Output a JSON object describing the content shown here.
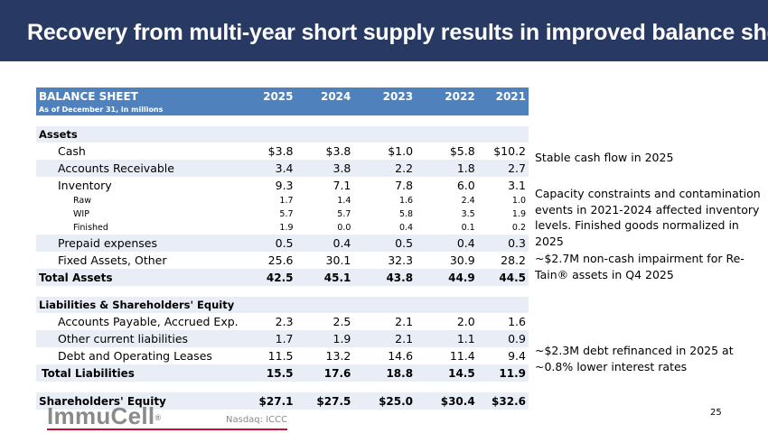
{
  "header": {
    "title": "Recovery from multi-year short supply results in improved balance sheet"
  },
  "table": {
    "title": "BALANCE SHEET",
    "subtitle": "As of December 31, in millions",
    "years": [
      "2025",
      "2024",
      "2023",
      "2022",
      "2021"
    ],
    "assets_heading": "Assets",
    "cash": {
      "label": "Cash",
      "values": [
        "$3.8",
        "$3.8",
        "$1.0",
        "$5.8",
        "$10.2"
      ]
    },
    "ar": {
      "label": "Accounts Receivable",
      "values": [
        "3.4",
        "3.8",
        "2.2",
        "1.8",
        "2.7"
      ]
    },
    "inventory": {
      "label": "Inventory",
      "values": [
        "9.3",
        "7.1",
        "7.8",
        "6.0",
        "3.1"
      ]
    },
    "raw": {
      "label": "Raw",
      "values": [
        "1.7",
        "1.4",
        "1.6",
        "2.4",
        "1.0"
      ]
    },
    "wip": {
      "label": "WIP",
      "values": [
        "5.7",
        "5.7",
        "5.8",
        "3.5",
        "1.9"
      ]
    },
    "finished": {
      "label": "Finished",
      "values": [
        "1.9",
        "0.0",
        "0.4",
        "0.1",
        "0.2"
      ]
    },
    "prepaid": {
      "label": "Prepaid expenses",
      "values": [
        "0.5",
        "0.4",
        "0.5",
        "0.4",
        "0.3"
      ]
    },
    "fixed": {
      "label": "Fixed Assets, Other",
      "values": [
        "25.6",
        "30.1",
        "32.3",
        "30.9",
        "28.2"
      ]
    },
    "total_assets": {
      "label": "Total Assets",
      "values": [
        "42.5",
        "45.1",
        "43.8",
        "44.9",
        "44.5"
      ]
    },
    "liab_heading": "Liabilities & Shareholders' Equity",
    "ap": {
      "label": "Accounts Payable, Accrued Exp.",
      "values": [
        "2.3",
        "2.5",
        "2.1",
        "2.0",
        "1.6"
      ]
    },
    "ocl": {
      "label": "Other current liabilities",
      "values": [
        "1.7",
        "1.9",
        "2.1",
        "1.1",
        "0.9"
      ]
    },
    "debt": {
      "label": "Debt and Operating Leases",
      "values": [
        "11.5",
        "13.2",
        "14.6",
        "11.4",
        "9.4"
      ]
    },
    "total_liab": {
      "label": "Total Liabilities",
      "values": [
        "15.5",
        "17.6",
        "18.8",
        "14.5",
        "11.9"
      ]
    },
    "equity": {
      "label": "Shareholders' Equity",
      "values": [
        "$27.1",
        "$27.5",
        "$25.0",
        "$30.4",
        "$32.6"
      ]
    }
  },
  "notes": {
    "cash": "Stable cash flow in 2025",
    "inventory": "Capacity constraints and contamination events in 2021-2024 affected inventory levels. Finished goods normalized in 2025",
    "impairment": "~$2.7M non-cash impairment for Re-Tain® assets in Q4 2025",
    "debt": "~$2.3M debt refinanced in 2025 at ~0.8% lower interest rates"
  },
  "footer": {
    "logo": "ImmuCell",
    "logo_mark": "®",
    "nasdaq": "Nasdaq: ICCC",
    "page": "25"
  },
  "colors": {
    "header_bg": "#283a64",
    "table_header_bg": "#4f81bd",
    "row_shade": "#e9eef6",
    "accent_line": "#c8102e"
  }
}
